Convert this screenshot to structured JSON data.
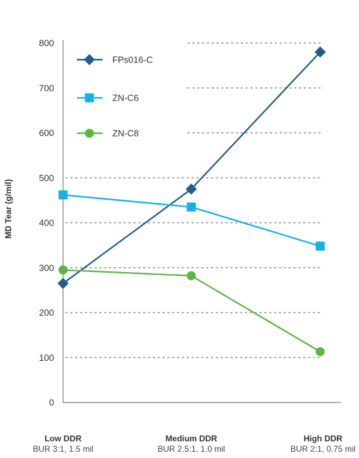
{
  "chart_data": {
    "type": "line",
    "title": "",
    "xlabel": "",
    "ylabel": "MD Tear (g/mil)",
    "ylim": [
      0,
      800
    ],
    "yticks": [
      0,
      100,
      200,
      300,
      400,
      500,
      600,
      700,
      800
    ],
    "grid": "horizontal dotted",
    "legend_position": "top-left",
    "categories": [
      {
        "title": "Low DDR",
        "subtitle": "BUR 3:1, 1.5 mil"
      },
      {
        "title": "Medium DDR",
        "subtitle": "BUR 2.5:1, 1.0 mil"
      },
      {
        "title": "High DDR",
        "subtitle": "BUR 2:1, 0.75 mil"
      }
    ],
    "series": [
      {
        "name": "FPs016-C",
        "color": "#1f5f8b",
        "marker": "diamond",
        "values": [
          265,
          475,
          780
        ]
      },
      {
        "name": "ZN-C6",
        "color": "#16b0e6",
        "marker": "square",
        "values": [
          462,
          435,
          348
        ]
      },
      {
        "name": "ZN-C8",
        "color": "#5db544",
        "marker": "circle",
        "values": [
          295,
          282,
          113
        ]
      }
    ]
  }
}
